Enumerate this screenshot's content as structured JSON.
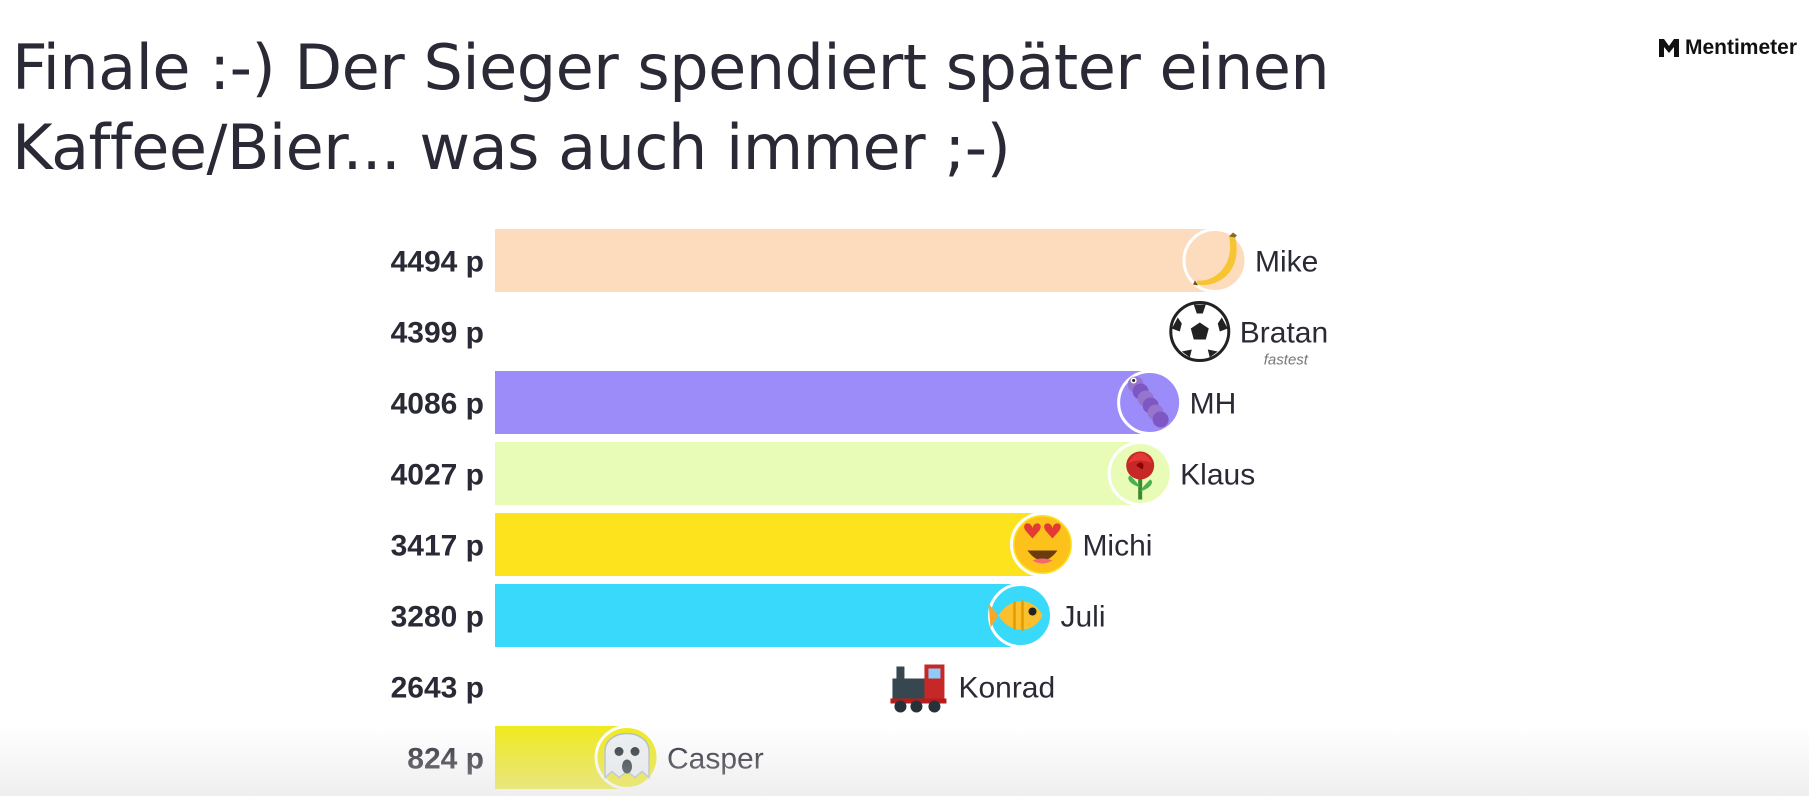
{
  "header": {
    "title": "Finale :-) Der Sieger spendiert später einen Kaffee/Bier... was auch immer ;-)",
    "brand": "Mentimeter"
  },
  "chart_data": {
    "type": "bar",
    "orientation": "horizontal",
    "value_suffix": " p",
    "xlim": [
      0,
      4494
    ],
    "entries": [
      {
        "name": "Mike",
        "value": 4494,
        "score_label": "4494 p",
        "color": "#fddcbd",
        "icon": "banana-icon"
      },
      {
        "name": "Bratan",
        "value": 4399,
        "score_label": "4399 p",
        "color": "#ffffff",
        "icon": "soccer-ball-icon",
        "badge": "fastest"
      },
      {
        "name": "MH",
        "value": 4086,
        "score_label": "4086 p",
        "color": "#9c8cfa",
        "icon": "worm-icon"
      },
      {
        "name": "Klaus",
        "value": 4027,
        "score_label": "4027 p",
        "color": "#e8fcb7",
        "icon": "rose-icon"
      },
      {
        "name": "Michi",
        "value": 3417,
        "score_label": "3417 p",
        "color": "#fde21e",
        "icon": "heart-eyes-icon"
      },
      {
        "name": "Juli",
        "value": 3280,
        "score_label": "3280 p",
        "color": "#38d9fb",
        "icon": "fish-icon"
      },
      {
        "name": "Konrad",
        "value": 2643,
        "score_label": "2643 p",
        "color": "#ffffff",
        "icon": "locomotive-icon"
      },
      {
        "name": "Casper",
        "value": 824,
        "score_label": "824 p",
        "color": "#f0ea1f",
        "icon": "ghost-icon"
      }
    ]
  }
}
